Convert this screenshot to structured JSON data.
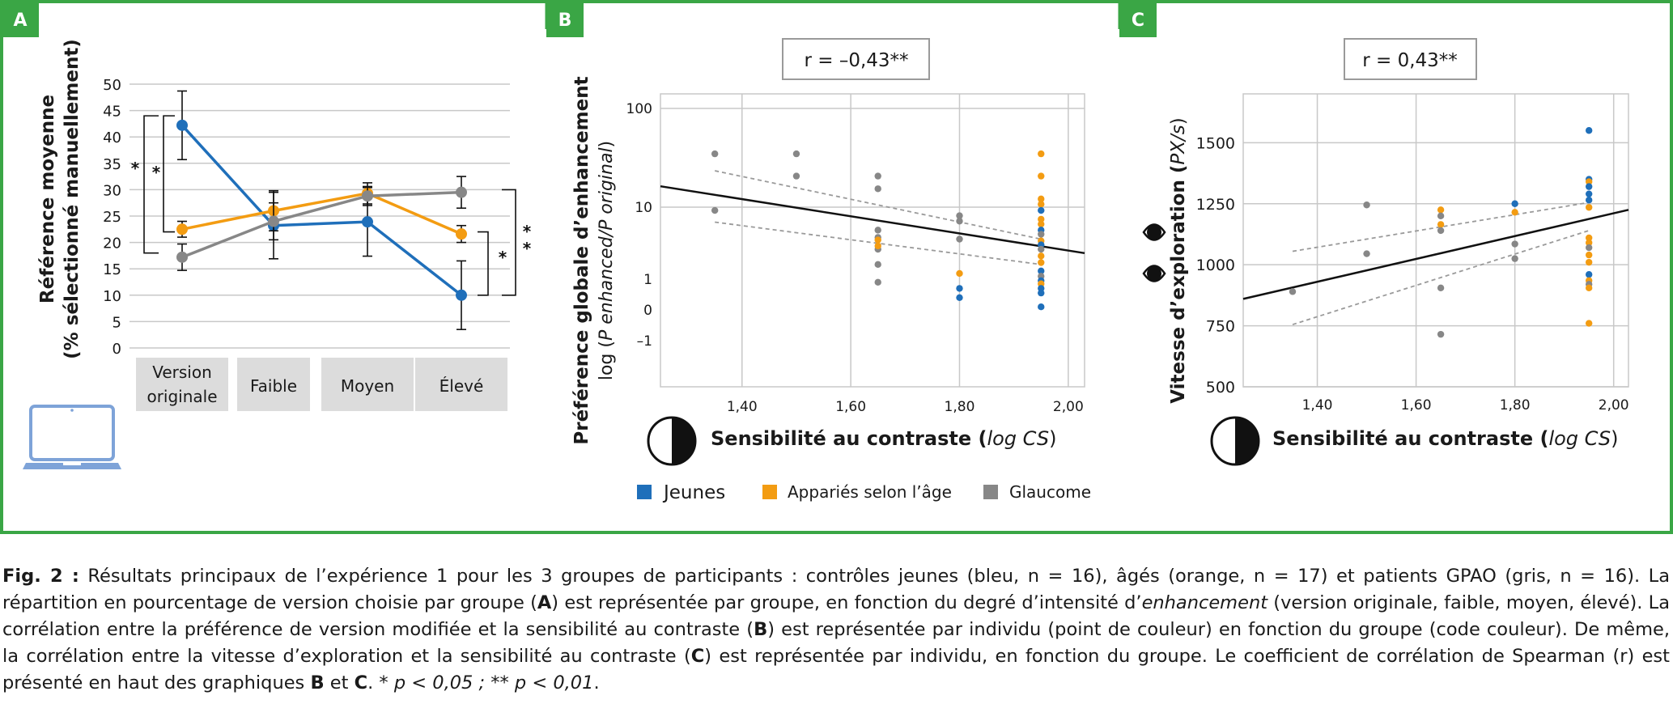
{
  "colors": {
    "frame": "#3aa645",
    "jeunes": "#1f6fba",
    "apparies": "#f39c12",
    "glaucome": "#878787",
    "category_box": "#dcdcdc",
    "grid": "#c8c8c8",
    "laptop": "#7ea3d8"
  },
  "icons": {
    "laptop": "laptop-icon",
    "contrast": "half-circle-contrast-icon",
    "eye": "eye-icon"
  },
  "legend": {
    "items": [
      {
        "label": "Jeunes",
        "color": "#1f6fba"
      },
      {
        "label": "Appariés selon l’âge",
        "color": "#f39c12"
      },
      {
        "label": "Glaucome",
        "color": "#878787"
      }
    ]
  },
  "chart_data": [
    {
      "panel": "A",
      "type": "line",
      "ylabel_line1": "Référence moyenne",
      "ylabel_line2": "(% sélectionné manuellement)",
      "ylim": [
        0,
        50
      ],
      "yticks": [
        0,
        5,
        10,
        15,
        20,
        25,
        30,
        35,
        40,
        45,
        50
      ],
      "grid": true,
      "categories": [
        "Version originale",
        "Faible",
        "Moyen",
        "Élevé"
      ],
      "category_lines": [
        [
          "Version",
          "originale"
        ],
        [
          "Faible"
        ],
        [
          "Moyen"
        ],
        [
          "Élevé"
        ]
      ],
      "series": [
        {
          "color": "#1f6fba",
          "values": [
            42.2,
            23.2,
            23.9,
            10.0
          ],
          "err": [
            6.5,
            6.3,
            6.5,
            6.5
          ]
        },
        {
          "color": "#f39c12",
          "values": [
            22.5,
            26.0,
            29.3,
            21.6
          ],
          "err": [
            1.5,
            3.8,
            2.0,
            1.6
          ]
        },
        {
          "color": "#878787",
          "values": [
            17.2,
            24.0,
            28.8,
            29.5
          ],
          "err": [
            2.5,
            3.5,
            1.8,
            3.0
          ]
        }
      ],
      "significance": [
        {
          "label": "*",
          "between": "Version originale",
          "span": [
            18,
            44
          ]
        },
        {
          "label": "*",
          "between": "Version originale",
          "span": [
            22,
            44
          ]
        },
        {
          "label": "*",
          "between": "Élevé",
          "span": [
            10,
            22
          ]
        },
        {
          "label": "**",
          "between": "Élevé",
          "span": [
            10,
            30
          ]
        }
      ]
    },
    {
      "panel": "B",
      "type": "scatter",
      "annotation": "r = –0,43**",
      "ylabel_line1": "Préférence globale d’enhancement",
      "ylabel_line2_prefix": "log (",
      "ylabel_line2_italic": "P enhanced/P original",
      "ylabel_line2_suffix": ")",
      "xlabel_main": "Sensibilité au contraste (",
      "xlabel_italic": "log CS",
      "xlabel_end": ")",
      "xlim": [
        1.25,
        2.03
      ],
      "xticks": [
        1.4,
        1.6,
        1.8,
        2.0
      ],
      "xtick_labels": [
        "1,40",
        "1,60",
        "1,80",
        "2,00"
      ],
      "yticks": [
        100,
        10,
        1,
        0,
        -1
      ],
      "ytick_labels": [
        "100",
        "10",
        "1",
        "0",
        "–1"
      ],
      "grid": true,
      "points": [
        {
          "group": "Glaucome",
          "x": 1.35,
          "y": 55
        },
        {
          "group": "Glaucome",
          "x": 1.35,
          "y": 9
        },
        {
          "group": "Glaucome",
          "x": 1.5,
          "y": 55
        },
        {
          "group": "Glaucome",
          "x": 1.5,
          "y": 27
        },
        {
          "group": "Glaucome",
          "x": 1.65,
          "y": 27
        },
        {
          "group": "Glaucome",
          "x": 1.65,
          "y": 18
        },
        {
          "group": "Glaucome",
          "x": 1.65,
          "y": 4.8
        },
        {
          "group": "Glaucome",
          "x": 1.65,
          "y": 3.8
        },
        {
          "group": "Glaucome",
          "x": 1.65,
          "y": 2.6
        },
        {
          "group": "Glaucome",
          "x": 1.65,
          "y": 1.6
        },
        {
          "group": "Glaucome",
          "x": 1.65,
          "y": 0.9
        },
        {
          "group": "Appariés selon l’âge",
          "x": 1.65,
          "y": 3.5
        },
        {
          "group": "Appariés selon l’âge",
          "x": 1.65,
          "y": 2.9
        },
        {
          "group": "Glaucome",
          "x": 1.8,
          "y": 7.6
        },
        {
          "group": "Glaucome",
          "x": 1.8,
          "y": 6.4
        },
        {
          "group": "Glaucome",
          "x": 1.8,
          "y": 3.6
        },
        {
          "group": "Appariés selon l’âge",
          "x": 1.8,
          "y": 1.2
        },
        {
          "group": "Jeunes",
          "x": 1.8,
          "y": 0.7
        },
        {
          "group": "Jeunes",
          "x": 1.8,
          "y": 0.4
        },
        {
          "group": "Appariés selon l’âge",
          "x": 1.95,
          "y": 55
        },
        {
          "group": "Appariés selon l’âge",
          "x": 1.95,
          "y": 27
        },
        {
          "group": "Appariés selon l’âge",
          "x": 1.95,
          "y": 13
        },
        {
          "group": "Appariés selon l’âge",
          "x": 1.95,
          "y": 11
        },
        {
          "group": "Jeunes",
          "x": 1.95,
          "y": 9
        },
        {
          "group": "Appariés selon l’âge",
          "x": 1.95,
          "y": 6.8
        },
        {
          "group": "Appariés selon l’âge",
          "x": 1.95,
          "y": 5.8
        },
        {
          "group": "Jeunes",
          "x": 1.95,
          "y": 4.8
        },
        {
          "group": "Glaucome",
          "x": 1.95,
          "y": 4.2
        },
        {
          "group": "Appariés selon l’âge",
          "x": 1.95,
          "y": 3.4
        },
        {
          "group": "Jeunes",
          "x": 1.95,
          "y": 3
        },
        {
          "group": "Glaucome",
          "x": 1.95,
          "y": 2.6
        },
        {
          "group": "Appariés selon l’âge",
          "x": 1.95,
          "y": 2.1
        },
        {
          "group": "Appariés selon l’âge",
          "x": 1.95,
          "y": 1.7
        },
        {
          "group": "Jeunes",
          "x": 1.95,
          "y": 1.3
        },
        {
          "group": "Glaucome",
          "x": 1.95,
          "y": 1.1
        },
        {
          "group": "Jeunes",
          "x": 1.95,
          "y": 0.95
        },
        {
          "group": "Appariés selon l’âge",
          "x": 1.95,
          "y": 0.85
        },
        {
          "group": "Jeunes",
          "x": 1.95,
          "y": 0.7
        },
        {
          "group": "Jeunes",
          "x": 1.95,
          "y": 0.55
        },
        {
          "group": "Jeunes",
          "x": 1.95,
          "y": 0.1
        }
      ],
      "fit": [
        [
          1.25,
          19.5
        ],
        [
          2.03,
          2.3
        ]
      ],
      "ci_upper": [
        [
          1.35,
          32
        ],
        [
          1.95,
          3.6
        ]
      ],
      "ci_lower": [
        [
          1.35,
          6.2
        ],
        [
          1.95,
          1.6
        ]
      ]
    },
    {
      "panel": "C",
      "type": "scatter",
      "annotation": "r = 0,43**",
      "ylabel_main": "Vitesse d’exploration (",
      "ylabel_italic": "PX/s",
      "ylabel_end": ")",
      "xlabel_main": "Sensibilité au contraste (",
      "xlabel_italic": "log CS",
      "xlabel_end": ")",
      "xlim": [
        1.25,
        2.03
      ],
      "ylim": [
        500,
        1700
      ],
      "xticks": [
        1.4,
        1.6,
        1.8,
        2.0
      ],
      "xtick_labels": [
        "1,40",
        "1,60",
        "1,80",
        "2,00"
      ],
      "yticks": [
        500,
        750,
        1000,
        1250,
        1500
      ],
      "ytick_labels": [
        "500",
        "750",
        "1000",
        "1250",
        "1500"
      ],
      "grid": true,
      "points": [
        {
          "group": "Glaucome",
          "x": 1.35,
          "y": 890
        },
        {
          "group": "Glaucome",
          "x": 1.5,
          "y": 1245
        },
        {
          "group": "Glaucome",
          "x": 1.5,
          "y": 1045
        },
        {
          "group": "Appariés selon l’âge",
          "x": 1.65,
          "y": 1225
        },
        {
          "group": "Glaucome",
          "x": 1.65,
          "y": 1200
        },
        {
          "group": "Appariés selon l’âge",
          "x": 1.65,
          "y": 1165
        },
        {
          "group": "Glaucome",
          "x": 1.65,
          "y": 1140
        },
        {
          "group": "Glaucome",
          "x": 1.65,
          "y": 905
        },
        {
          "group": "Glaucome",
          "x": 1.65,
          "y": 715
        },
        {
          "group": "Jeunes",
          "x": 1.8,
          "y": 1250
        },
        {
          "group": "Appariés selon l’âge",
          "x": 1.8,
          "y": 1215
        },
        {
          "group": "Glaucome",
          "x": 1.8,
          "y": 1085
        },
        {
          "group": "Glaucome",
          "x": 1.8,
          "y": 1025
        },
        {
          "group": "Jeunes",
          "x": 1.95,
          "y": 1550
        },
        {
          "group": "Jeunes",
          "x": 1.95,
          "y": 1350
        },
        {
          "group": "Appariés selon l’âge",
          "x": 1.95,
          "y": 1340
        },
        {
          "group": "Jeunes",
          "x": 1.95,
          "y": 1320
        },
        {
          "group": "Jeunes",
          "x": 1.95,
          "y": 1290
        },
        {
          "group": "Jeunes",
          "x": 1.95,
          "y": 1265
        },
        {
          "group": "Appariés selon l’âge",
          "x": 1.95,
          "y": 1235
        },
        {
          "group": "Appariés selon l’âge",
          "x": 1.95,
          "y": 1110
        },
        {
          "group": "Appariés selon l’âge",
          "x": 1.95,
          "y": 1090
        },
        {
          "group": "Glaucome",
          "x": 1.95,
          "y": 1070
        },
        {
          "group": "Appariés selon l’âge",
          "x": 1.95,
          "y": 1040
        },
        {
          "group": "Appariés selon l’âge",
          "x": 1.95,
          "y": 1010
        },
        {
          "group": "Jeunes",
          "x": 1.95,
          "y": 960
        },
        {
          "group": "Appariés selon l’âge",
          "x": 1.95,
          "y": 935
        },
        {
          "group": "Glaucome",
          "x": 1.95,
          "y": 920
        },
        {
          "group": "Appariés selon l’âge",
          "x": 1.95,
          "y": 905
        },
        {
          "group": "Appariés selon l’âge",
          "x": 1.95,
          "y": 760
        }
      ],
      "fit": [
        [
          1.25,
          860
        ],
        [
          2.03,
          1225
        ]
      ],
      "ci_upper": [
        [
          1.35,
          1055
        ],
        [
          1.95,
          1255
        ]
      ],
      "ci_lower": [
        [
          1.35,
          755
        ],
        [
          1.95,
          1140
        ]
      ]
    }
  ],
  "caption": {
    "fig_label": "Fig. 2 :",
    "part1": " Résultats principaux de l’expérience 1 pour les 3 groupes de participants : contrôles jeunes (bleu, n = 16), âgés (orange, n = 17) et patients GPAO (gris, n = 16). La répartition en pourcentage de version choisie par groupe (",
    "ref_A": "A",
    "part2": ") est représentée par groupe, en fonction du degré d’intensité d’",
    "enh": "enhancement",
    "part3": " (version originale, faible, moyen, élevé). La corrélation entre la préférence de version modifiée et la sensibilité au contraste (",
    "ref_B": "B",
    "part4": ") est représentée par individu (point de couleur) en fonction du groupe (code couleur). De même, la corrélation entre la vitesse d’exploration et la sensibilité au contraste (",
    "ref_C": "C",
    "part5": ") est représentée par individu, en fonction du groupe. Le coefficient de corrélation de Spearman (r) est présenté en haut des graphiques ",
    "ref_B2": "B",
    "and": " et ",
    "ref_C2": "C",
    "part6": ". * ",
    "p1": "p < 0,05 ; ** p < 0,01",
    "end": "."
  }
}
